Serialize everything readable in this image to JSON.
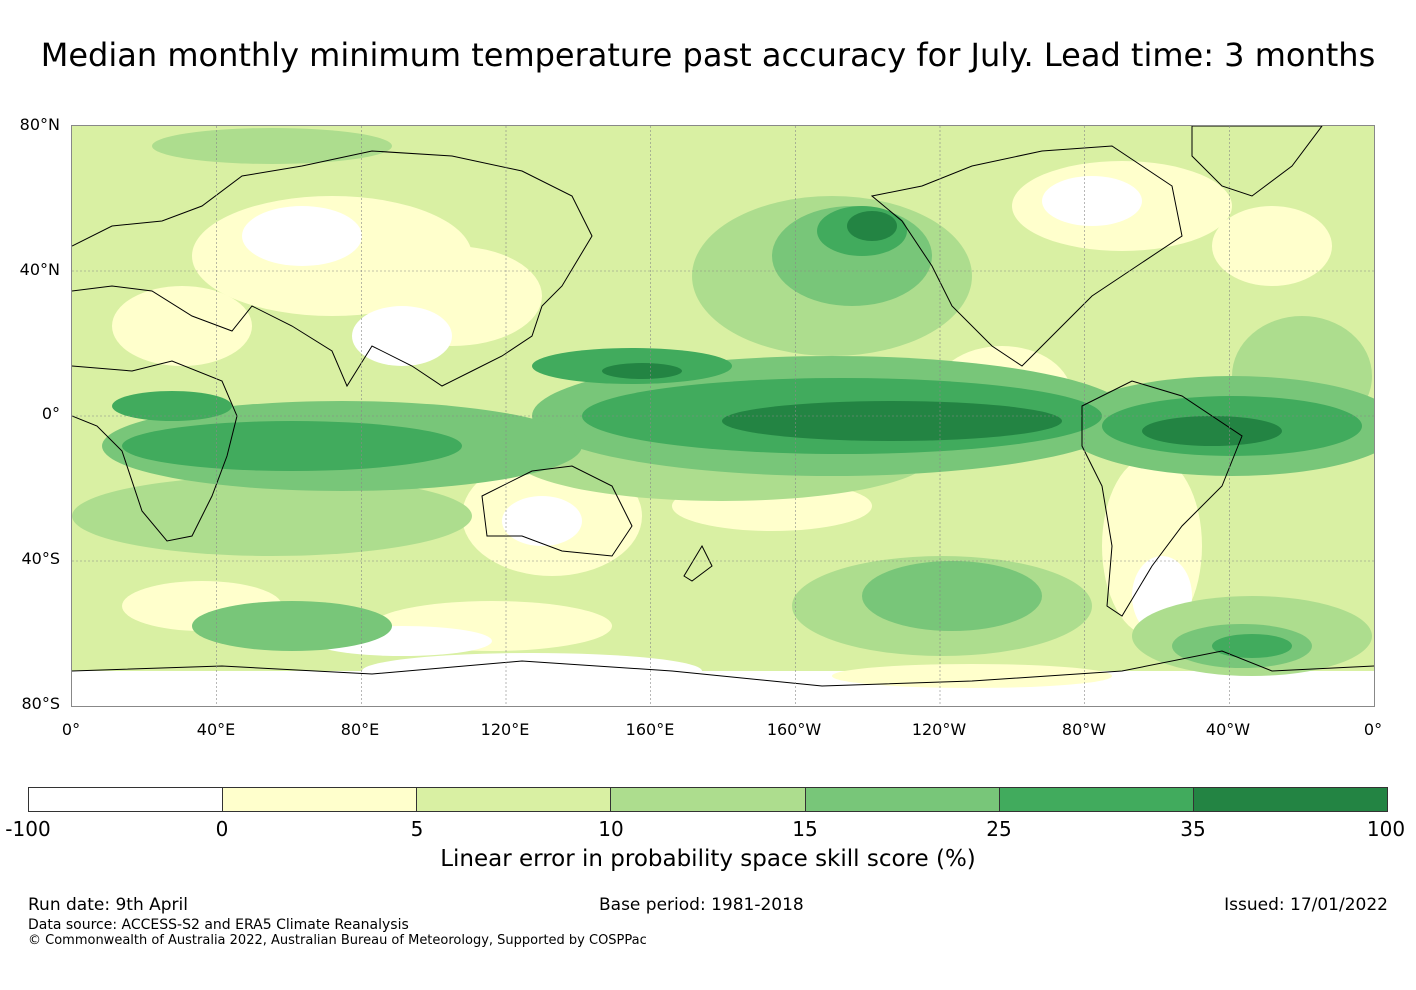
{
  "title": "Median monthly minimum temperature past accuracy for July. Lead time: 3 months",
  "map": {
    "lat_labels": [
      "80°N",
      "40°N",
      "0°",
      "40°S",
      "80°S"
    ],
    "lon_labels": [
      "0°",
      "40°E",
      "80°E",
      "120°E",
      "160°E",
      "160°W",
      "120°W",
      "80°W",
      "40°W",
      "0°"
    ]
  },
  "colorbar": {
    "ticks": [
      "-100",
      "0",
      "5",
      "10",
      "15",
      "25",
      "35",
      "100"
    ],
    "colors": [
      "#ffffff",
      "#ffffcc",
      "#d9f0a3",
      "#addd8e",
      "#78c679",
      "#41ab5d",
      "#238443"
    ],
    "label": "Linear error in probability space skill score (%)"
  },
  "footer": {
    "run_date": "Run date: 9th April",
    "base_period": "Base period: 1981-2018",
    "issued": "Issued: 17/01/2022",
    "data_source": "Data source: ACCESS-S2 and ERA5 Climate Reanalysis",
    "copyright": "© Commonwealth of Australia 2022, Australian Bureau of Meteorology, Supported by COSPPac"
  }
}
